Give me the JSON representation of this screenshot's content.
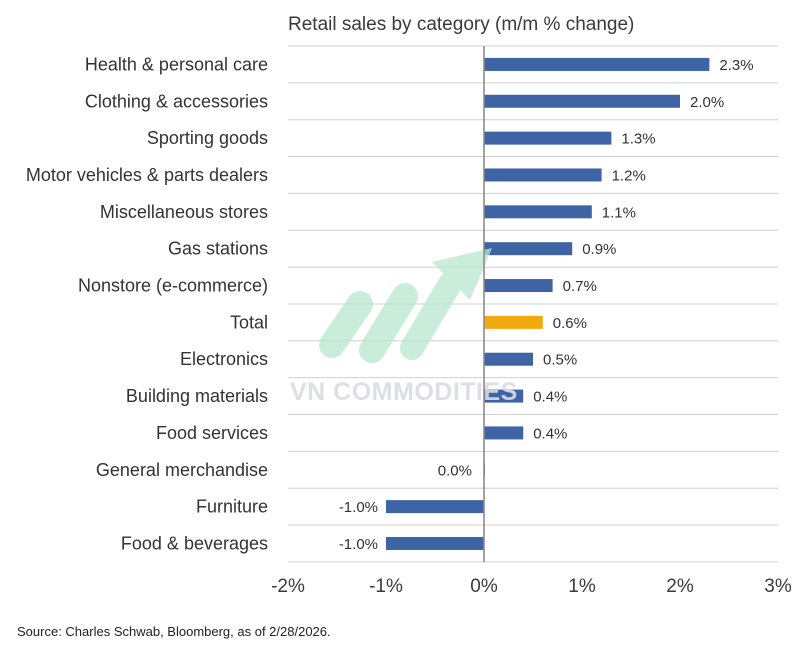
{
  "chart_data": {
    "type": "bar",
    "orientation": "horizontal",
    "title": "Retail sales by category (m/m % change)",
    "categories": [
      "Health & personal care",
      "Clothing & accessories",
      "Sporting goods",
      "Motor vehicles & parts dealers",
      "Miscellaneous stores",
      "Gas stations",
      "Nonstore (e-commerce)",
      "Total",
      "Electronics",
      "Building materials",
      "Food services",
      "General merchandise",
      "Furniture",
      "Food & beverages"
    ],
    "values": [
      2.3,
      2.0,
      1.3,
      1.2,
      1.1,
      0.9,
      0.7,
      0.6,
      0.5,
      0.4,
      0.4,
      0.0,
      -1.0,
      -1.0
    ],
    "value_labels": [
      "2.3%",
      "2.0%",
      "1.3%",
      "1.2%",
      "1.1%",
      "0.9%",
      "0.7%",
      "0.6%",
      "0.5%",
      "0.4%",
      "0.4%",
      "0.0%",
      "-1.0%",
      "-1.0%"
    ],
    "highlight_category": "Total",
    "xlim": [
      -2,
      3
    ],
    "xticks": [
      -2,
      -1,
      0,
      1,
      2,
      3
    ],
    "xtick_labels": [
      "-2%",
      "-1%",
      "0%",
      "1%",
      "2%",
      "3%"
    ],
    "xlabel": "",
    "ylabel": "",
    "grid": "horizontal",
    "legend": "none",
    "colors": {
      "bar": "#3f64a6",
      "highlight": "#f1a90f",
      "grid": "#d0d0d0",
      "zero_line": "#8c8c8c"
    }
  },
  "source": "Source: Charles Schwab, Bloomberg, as of 2/28/2026.",
  "watermark": {
    "text": "VN COMMODITIES",
    "color": "#d9dce3",
    "logo_color": "#b9e6cf",
    "icon": "rising-arrow-logo-icon"
  }
}
